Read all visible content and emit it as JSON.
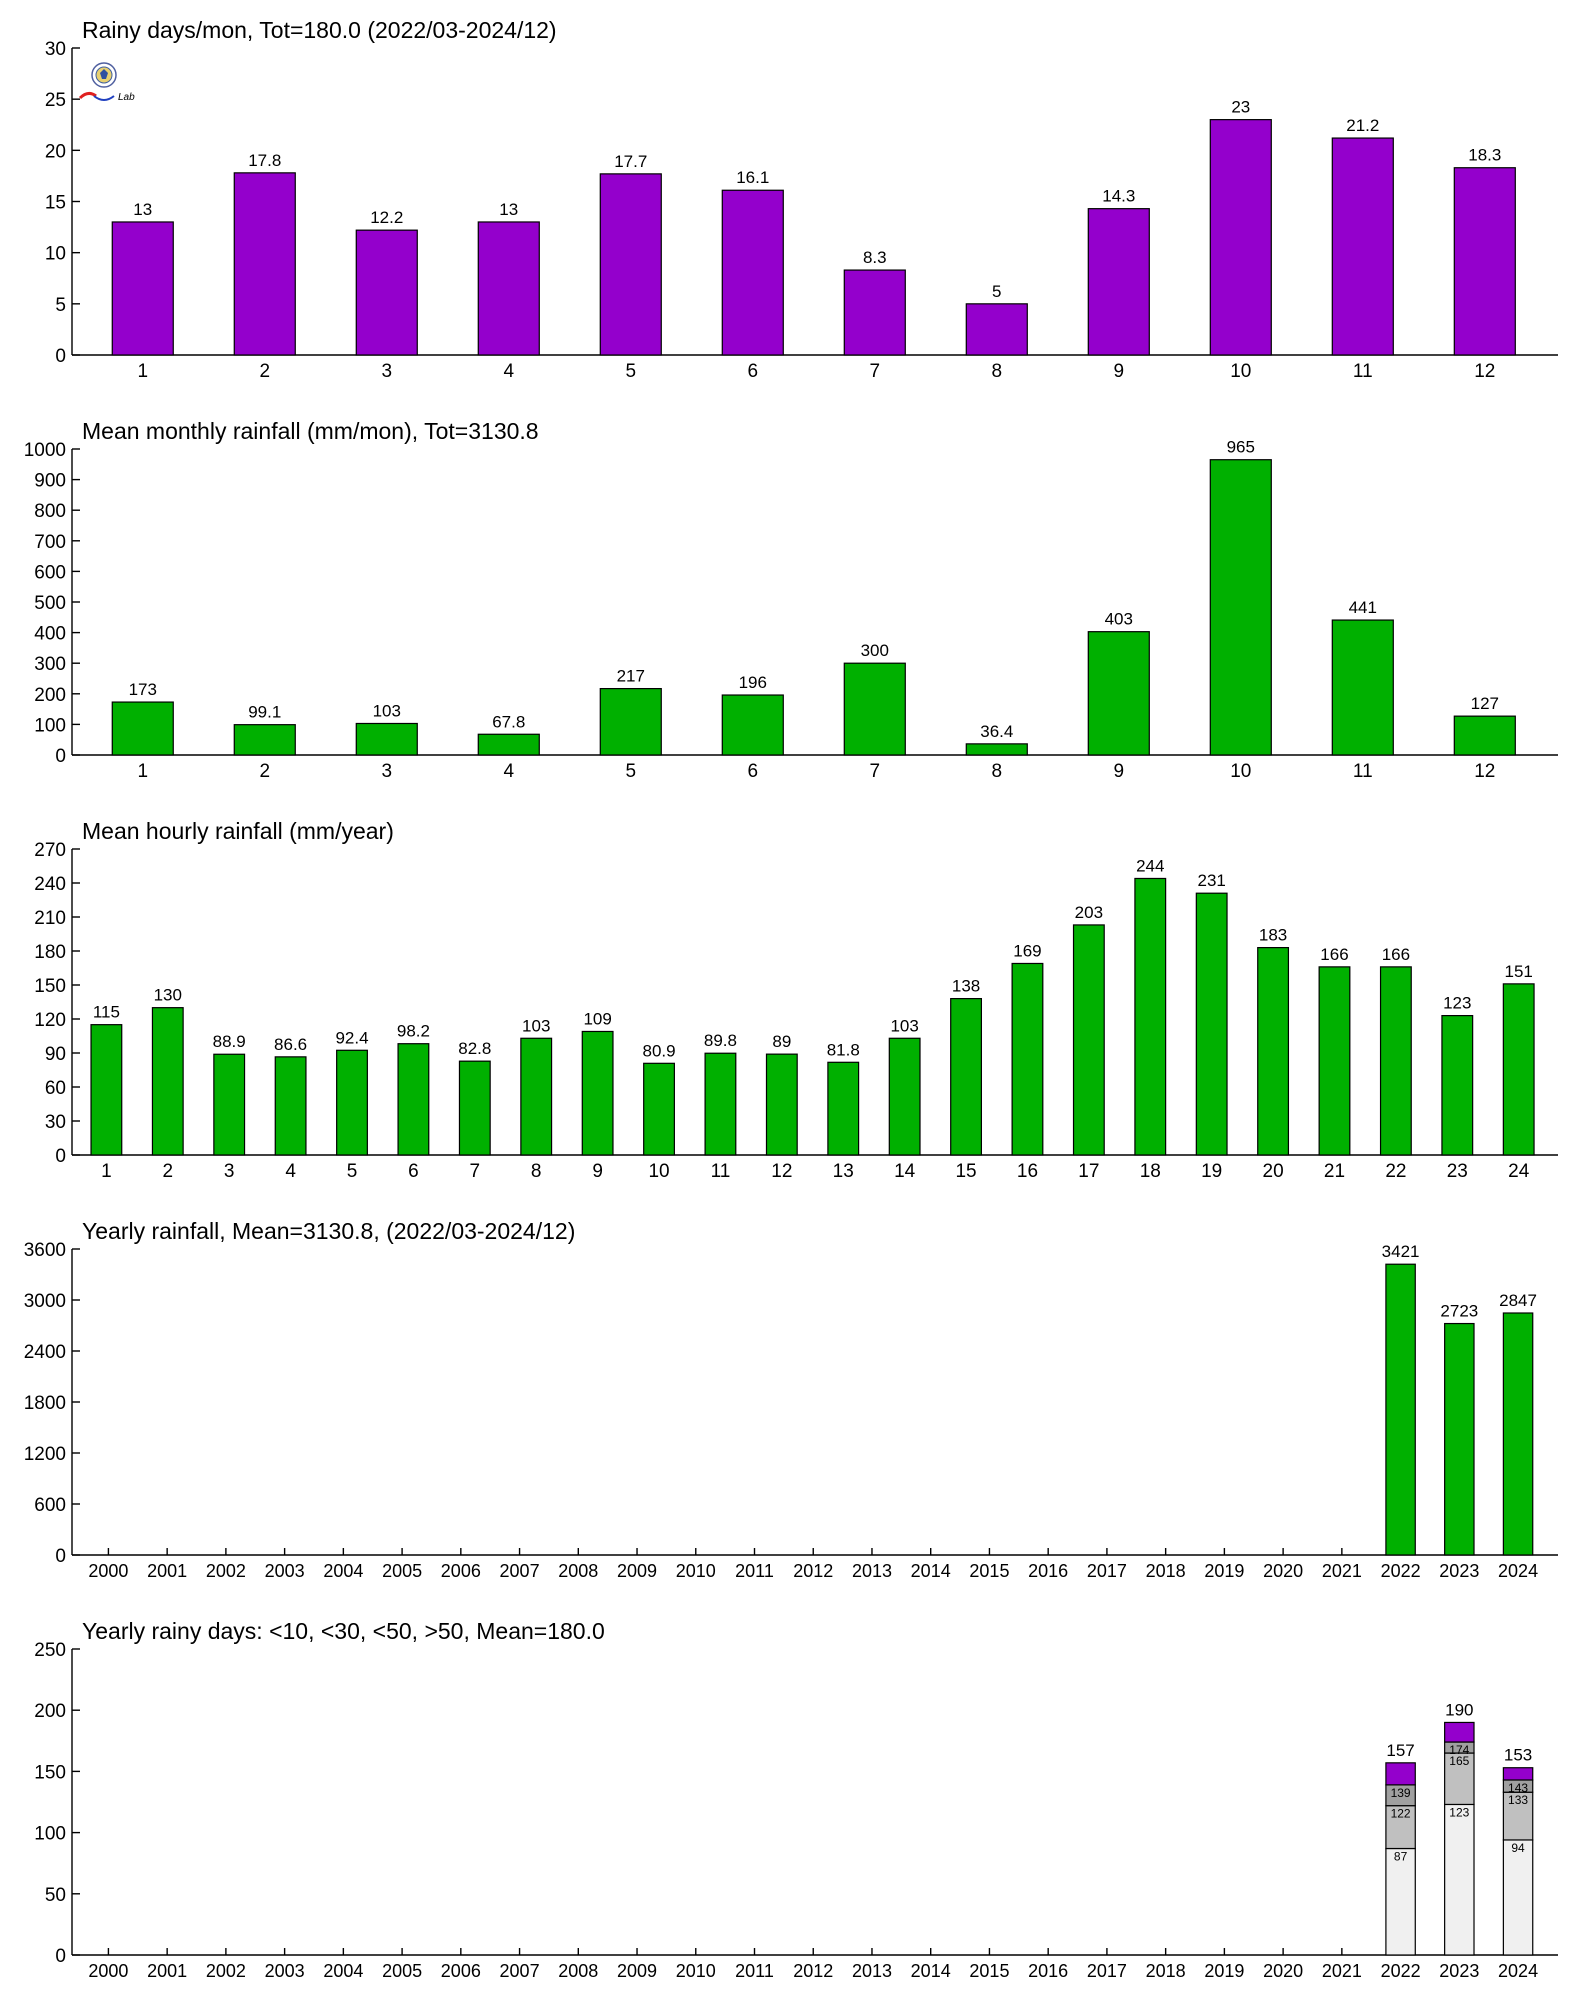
{
  "colors": {
    "purple": "#9400cc",
    "green": "#00b000",
    "seg_lt10": "#f0f0f0",
    "seg_lt30": "#c0c0c0",
    "seg_lt50": "#a0a0a0",
    "seg_gt50": "#9400cc"
  },
  "logo": {
    "icon": "seal-logo-icon",
    "text": "Lab"
  },
  "chart_data": [
    {
      "type": "bar",
      "title": "Rainy days/mon, Tot=180.0 (2022/03-2024/12)",
      "categories": [
        "1",
        "2",
        "3",
        "4",
        "5",
        "6",
        "7",
        "8",
        "9",
        "10",
        "11",
        "12"
      ],
      "values": [
        13,
        17.8,
        12.2,
        13,
        17.7,
        16.1,
        8.3,
        5,
        14.3,
        23,
        21.2,
        18.3
      ],
      "labels": [
        "13",
        "17.8",
        "12.2",
        "13",
        "17.7",
        "16.1",
        "8.3",
        "5",
        "14.3",
        "23",
        "21.2",
        "18.3"
      ],
      "ylim": [
        0,
        30
      ],
      "yticks": [
        0,
        5,
        10,
        15,
        20,
        25,
        30
      ],
      "color": "#9400cc"
    },
    {
      "type": "bar",
      "title": "Mean monthly rainfall (mm/mon), Tot=3130.8",
      "categories": [
        "1",
        "2",
        "3",
        "4",
        "5",
        "6",
        "7",
        "8",
        "9",
        "10",
        "11",
        "12"
      ],
      "values": [
        173,
        99.1,
        103,
        67.8,
        217,
        196,
        300,
        36.4,
        403,
        965,
        441,
        127
      ],
      "labels": [
        "173",
        "99.1",
        "103",
        "67.8",
        "217",
        "196",
        "300",
        "36.4",
        "403",
        "965",
        "441",
        "127"
      ],
      "ylim": [
        0,
        1000
      ],
      "yticks": [
        0,
        100,
        200,
        300,
        400,
        500,
        600,
        700,
        800,
        900,
        1000
      ],
      "color": "#00b000"
    },
    {
      "type": "bar",
      "title": "Mean hourly rainfall (mm/year)",
      "categories": [
        "1",
        "2",
        "3",
        "4",
        "5",
        "6",
        "7",
        "8",
        "9",
        "10",
        "11",
        "12",
        "13",
        "14",
        "15",
        "16",
        "17",
        "18",
        "19",
        "20",
        "21",
        "22",
        "23",
        "24"
      ],
      "values": [
        115,
        130,
        88.9,
        86.6,
        92.4,
        98.2,
        82.8,
        103,
        109,
        80.9,
        89.8,
        89,
        81.8,
        103,
        138,
        169,
        203,
        244,
        231,
        183,
        166,
        166,
        123,
        151
      ],
      "labels": [
        "115",
        "130",
        "88.9",
        "86.6",
        "92.4",
        "98.2",
        "82.8",
        "103",
        "109",
        "80.9",
        "89.8",
        "89",
        "81.8",
        "103",
        "138",
        "169",
        "203",
        "244",
        "231",
        "183",
        "166",
        "166",
        "123",
        "151"
      ],
      "ylim": [
        0,
        270
      ],
      "yticks": [
        0,
        30,
        60,
        90,
        120,
        150,
        180,
        210,
        240,
        270
      ],
      "color": "#00b000"
    },
    {
      "type": "bar",
      "title": "Yearly rainfall, Mean=3130.8, (2022/03-2024/12)",
      "categories": [
        "2000",
        "2001",
        "2002",
        "2003",
        "2004",
        "2005",
        "2006",
        "2007",
        "2008",
        "2009",
        "2010",
        "2011",
        "2012",
        "2013",
        "2014",
        "2015",
        "2016",
        "2017",
        "2018",
        "2019",
        "2020",
        "2021",
        "2022",
        "2023",
        "2024"
      ],
      "values": [
        null,
        null,
        null,
        null,
        null,
        null,
        null,
        null,
        null,
        null,
        null,
        null,
        null,
        null,
        null,
        null,
        null,
        null,
        null,
        null,
        null,
        null,
        3421,
        2723,
        2847
      ],
      "labels": [
        "",
        "",
        "",
        "",
        "",
        "",
        "",
        "",
        "",
        "",
        "",
        "",
        "",
        "",
        "",
        "",
        "",
        "",
        "",
        "",
        "",
        "",
        "3421",
        "2723",
        "2847"
      ],
      "ylim": [
        0,
        3600
      ],
      "yticks": [
        0,
        600,
        1200,
        1800,
        2400,
        3000,
        3600
      ],
      "color": "#00b000"
    },
    {
      "type": "bar",
      "stacked": true,
      "title": "Yearly rainy days: <10, <30, <50, >50, Mean=180.0",
      "categories": [
        "2000",
        "2001",
        "2002",
        "2003",
        "2004",
        "2005",
        "2006",
        "2007",
        "2008",
        "2009",
        "2010",
        "2011",
        "2012",
        "2013",
        "2014",
        "2015",
        "2016",
        "2017",
        "2018",
        "2019",
        "2020",
        "2021",
        "2022",
        "2023",
        "2024"
      ],
      "stack_years": [
        "2022",
        "2023",
        "2024"
      ],
      "cumulative": {
        "lt10": [
          87,
          123,
          94
        ],
        "lt30": [
          122,
          165,
          133
        ],
        "lt50": [
          139,
          174,
          143
        ],
        "total": [
          157,
          190,
          153
        ]
      },
      "ylim": [
        0,
        250
      ],
      "yticks": [
        0,
        50,
        100,
        150,
        200,
        250
      ]
    }
  ]
}
